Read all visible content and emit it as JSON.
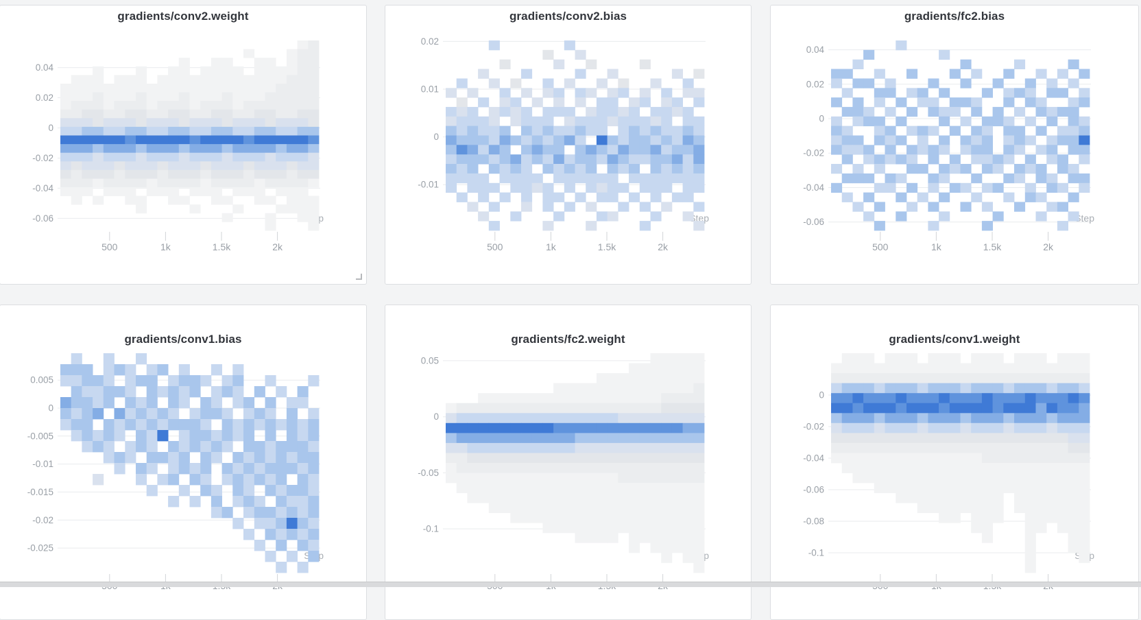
{
  "page": {
    "background": "#f3f4f5",
    "panel_background": "#ffffff",
    "panel_border": "#dcdee1",
    "title_color": "#33363c",
    "axis_label_color": "#999fa6",
    "gridline_color": "#e9ebee",
    "tick_color": "#d2d4d7"
  },
  "colormap": [
    "transparent",
    "#f2f3f4",
    "#ebedef",
    "#e3e6ea",
    "#d9e1ee",
    "#c7d8f0",
    "#a9c6ec",
    "#84ade5",
    "#5f93dd",
    "#3f7ad6"
  ],
  "chart_data": [
    {
      "type": "heatmap",
      "title": "gradients/conv2.weight",
      "xlabel": "Step",
      "x_domain": [
        60,
        2370
      ],
      "x_ticks": [
        {
          "value": 500,
          "label": "500"
        },
        {
          "value": 1000,
          "label": "1k"
        },
        {
          "value": 1500,
          "label": "1.5k"
        },
        {
          "value": 2000,
          "label": "2k"
        }
      ],
      "y_domain": [
        0.058,
        -0.068
      ],
      "y_ticks": [
        {
          "value": 0.04,
          "label": "0.04"
        },
        {
          "value": 0.02,
          "label": "0.02"
        },
        {
          "value": 0,
          "label": "0"
        },
        {
          "value": -0.02,
          "label": "-0.02"
        },
        {
          "value": -0.04,
          "label": "-0.04"
        },
        {
          "value": -0.06,
          "label": "-0.06"
        }
      ],
      "intensity_scale": "digits 0-9 = bin density low to high",
      "bins": [
        "000000000000000000000012",
        "000000000000000001000122",
        "000000000001001100110122",
        "000100010011011110111122",
        "011101110111111111111222",
        "111111111111111111112222",
        "111211121112111211122222",
        "122212221222122212222222",
        "223322332233223322332233",
        "444344434443444344434443",
        "556655665566556655665566",
        "999999899999899998999998",
        "777677767776777677776776",
        "555455545554555455545554",
        "434443444344434443444344",
        "323332333233323332333233",
        "222122221222212222122221",
        "111011101110111011101110",
        "010100110011001100110111",
        "000000010000100010001111",
        "000000000000000100010011",
        "000000000000000000010001"
      ]
    },
    {
      "type": "heatmap",
      "title": "gradients/conv2.bias",
      "xlabel": "Step",
      "x_domain": [
        60,
        2370
      ],
      "x_ticks": [
        {
          "value": 500,
          "label": "500"
        },
        {
          "value": 1000,
          "label": "1k"
        },
        {
          "value": 1500,
          "label": "1.5k"
        },
        {
          "value": 2000,
          "label": "2k"
        }
      ],
      "y_domain": [
        0.0202,
        -0.0196
      ],
      "y_ticks": [
        {
          "value": 0.02,
          "label": "0.02"
        },
        {
          "value": 0.01,
          "label": "0.01"
        },
        {
          "value": 0,
          "label": "0"
        },
        {
          "value": -0.01,
          "label": "-0.01"
        }
      ],
      "intensity_scale": "digits 0-9 = bin density low to high",
      "bins": [
        "000050000005000000000000",
        "000000000300400000000000",
        "000003000040030000300000",
        "000400050000500400000403",
        "050040300504004030040050",
        "404005040450540450405044",
        "030504504040405504504505",
        "545045450555045545055450",
        "455540455504555455545055",
        "656556065655655056565565",
        "766657656567509656656576",
        "687576067660676576675667",
        "566656756575665765566757",
        "656065650656560656065656",
        "555505555055555505555555",
        "505550554505054550555055",
        "050505050550505505050550",
        "004050040505040050504005",
        "000400500050005400050040",
        "000050000400040000500004"
      ]
    },
    {
      "type": "heatmap",
      "title": "gradients/fc2.bias",
      "xlabel": "Step",
      "x_domain": [
        60,
        2370
      ],
      "x_ticks": [
        {
          "value": 500,
          "label": "500"
        },
        {
          "value": 1000,
          "label": "1k"
        },
        {
          "value": 1500,
          "label": "1.5k"
        },
        {
          "value": 2000,
          "label": "2k"
        }
      ],
      "y_domain": [
        0.0454,
        -0.0649
      ],
      "y_ticks": [
        {
          "value": 0.04,
          "label": "0.04"
        },
        {
          "value": 0.02,
          "label": "0.02"
        },
        {
          "value": 0,
          "label": "0"
        },
        {
          "value": -0.02,
          "label": "-0.02"
        },
        {
          "value": -0.04,
          "label": "-0.04"
        },
        {
          "value": -0.06,
          "label": "-0.06"
        }
      ],
      "intensity_scale": "digits 0-9 = bin density low to high",
      "bins": [
        "000000500000000000000000",
        "000600000050000000000000",
        "005000000000600005000060",
        "660050060006050060050506",
        "506605000600600600605050",
        "050066056060006056506605",
        "606050605506650060650056",
        "066505060655060605065660",
        "505660600060506650506065",
        "650056056506065066060556",
        "566065605060656056505669",
        "655606065650566065056066",
        "060565650606055650605605",
        "505050066065606506560650",
        "066606500650060065065066",
        "600055060506505600506505",
        "050600605060050050650060",
        "005060050600605006005600",
        "000500600050000600050050",
        "000060000500006000000500"
      ]
    },
    {
      "type": "heatmap",
      "title": "gradients/conv1.bias",
      "xlabel": "Step",
      "x_domain": [
        60,
        2370
      ],
      "x_ticks": [
        {
          "value": 500,
          "label": "500"
        },
        {
          "value": 1000,
          "label": "1k"
        },
        {
          "value": 1500,
          "label": "1.5k"
        },
        {
          "value": 2000,
          "label": "2k"
        }
      ],
      "y_domain": [
        0.0098,
        -0.0294
      ],
      "y_ticks": [
        {
          "value": 0.005,
          "label": "0.005"
        },
        {
          "value": 0,
          "label": "0"
        },
        {
          "value": -0.005,
          "label": "-0.005"
        },
        {
          "value": -0.01,
          "label": "-0.01"
        },
        {
          "value": -0.015,
          "label": "-0.015"
        },
        {
          "value": -0.02,
          "label": "-0.02"
        },
        {
          "value": -0.025,
          "label": "-0.025"
        }
      ],
      "intensity_scale": "digits 0-9 = bin density low to high",
      "bins": [
        "050050050000000000000000",
        "666056505605005050000000",
        "556650566056650560050005",
        "065566506565605650605060",
        "766560656065065056060550",
        "656707565650566505650605",
        "566065656566650656565656",
        "056565065905665656060656",
        "005650565065656506656665",
        "000056506656065065656566",
        "000005065056560656566656",
        "000400050560650565656065",
        "000000005005065065065665",
        "000000000050506056506556",
        "000000000000005605665656",
        "000000000000000050556965",
        "000000000000000005065656",
        "000000000000000000506065",
        "000000000000000000050506",
        "000000000000000000005050"
      ]
    },
    {
      "type": "heatmap",
      "title": "gradients/fc2.weight",
      "xlabel": "Step",
      "x_domain": [
        60,
        2370
      ],
      "x_ticks": [
        {
          "value": 500,
          "label": "500"
        },
        {
          "value": 1000,
          "label": "1k"
        },
        {
          "value": 1500,
          "label": "1.5k"
        },
        {
          "value": 2000,
          "label": "2k"
        }
      ],
      "y_domain": [
        0.0567,
        -0.1391
      ],
      "y_ticks": [
        {
          "value": 0.05,
          "label": "0.05"
        },
        {
          "value": 0,
          "label": "0"
        },
        {
          "value": -0.05,
          "label": "-0.05"
        },
        {
          "value": -0.1,
          "label": "-0.1"
        }
      ],
      "intensity_scale": "digits 0-9 = bin density low to high",
      "bins": [
        "000000000000000000011111",
        "000000000000000001111111",
        "000000000000001111111111",
        "000000000011111111111112",
        "000111111111111111112222",
        "122222222222222222223333",
        "455555555555555544444444",
        "999999999988888888888877",
        "677777777777666666666666",
        "445555555555444444444444",
        "223333333333333333333333",
        "122222222222222222222222",
        "111111111111111122222222",
        "011111111111111111111111",
        "001111111111111111111111",
        "000011111111111111111111",
        "000000111111111111111111",
        "000000000111111111111111",
        "000000000000111101111111",
        "000000000000000001011111",
        "000000000000000000001011",
        "000000000000000000000001"
      ]
    },
    {
      "type": "heatmap",
      "title": "gradients/conv1.weight",
      "xlabel": "Step",
      "x_domain": [
        60,
        2370
      ],
      "x_ticks": [
        {
          "value": 500,
          "label": "500"
        },
        {
          "value": 1000,
          "label": "1k"
        },
        {
          "value": 1500,
          "label": "1.5k"
        },
        {
          "value": 2000,
          "label": "2k"
        }
      ],
      "y_domain": [
        0.0265,
        -0.1126
      ],
      "y_ticks": [
        {
          "value": 0,
          "label": "0"
        },
        {
          "value": -0.02,
          "label": "-0.02"
        },
        {
          "value": -0.04,
          "label": "-0.04"
        },
        {
          "value": -0.06,
          "label": "-0.06"
        },
        {
          "value": -0.08,
          "label": "-0.08"
        },
        {
          "value": -0.1,
          "label": "-0.1"
        }
      ],
      "intensity_scale": "digits 0-9 = bin density low to high",
      "bins": [
        "011101110111011101110111",
        "111111111111111111111111",
        "222222222222222222222222",
        "566656665666566656665665",
        "889888988898889888988898",
        "998999899989999899979887",
        "677767776777677767776777",
        "455545554555455545554555",
        "333333333333333333333344",
        "222222222222222222222233",
        "111111111111112222222222",
        "011111111111111111111111",
        "001111111111111111111111",
        "000011111111111111111111",
        "000000111111111101111111",
        "000000001111111101111111",
        "000000000011011100111111",
        "000000000000011000110111",
        "000000000000001000100011",
        "000000000000000000100011",
        "000000000000000000100001",
        "000000000000000000100000"
      ]
    }
  ]
}
